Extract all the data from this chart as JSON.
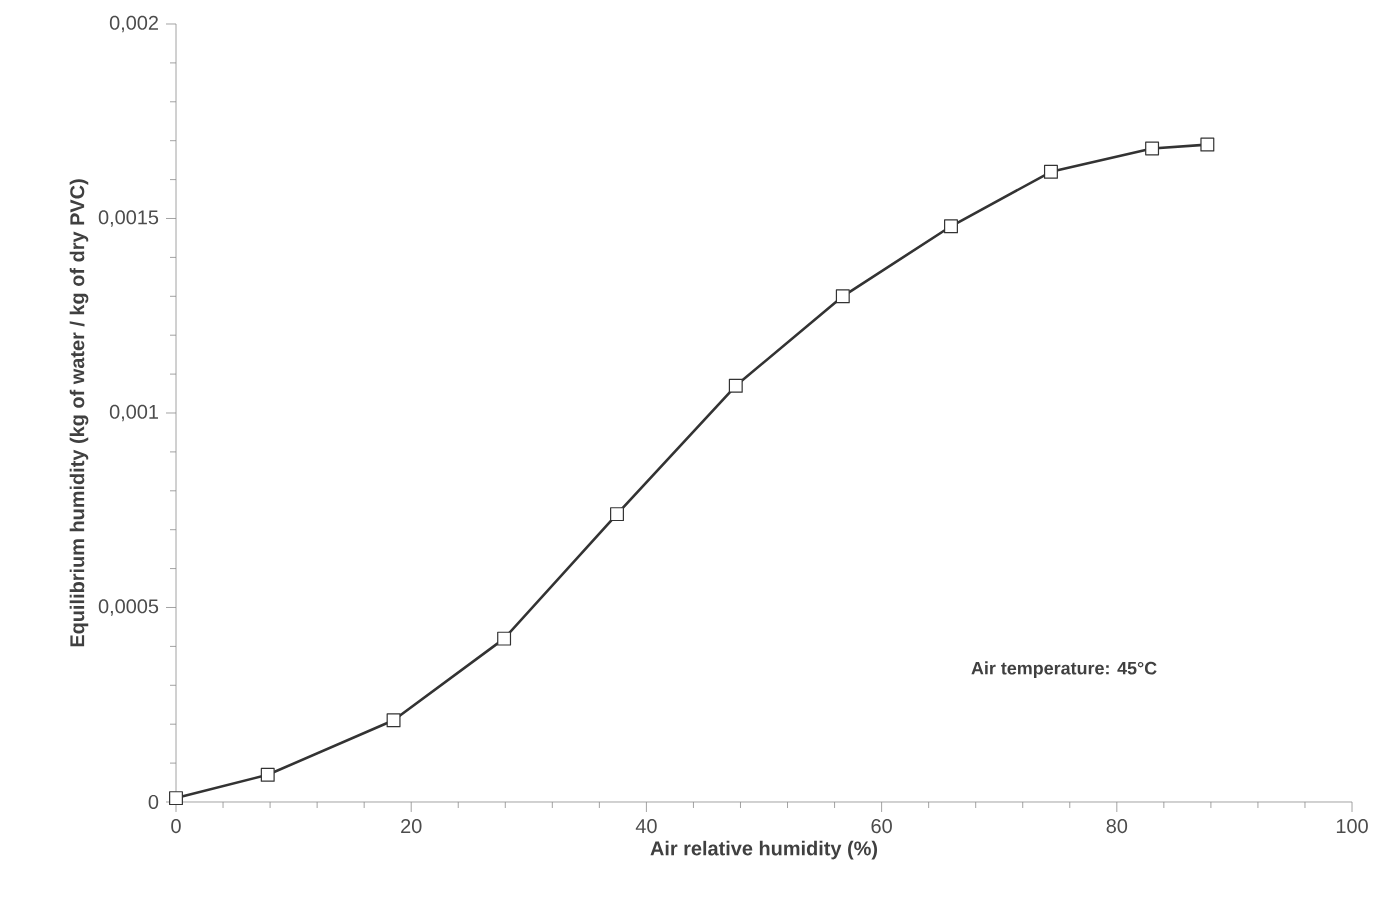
{
  "chart_data": {
    "type": "line",
    "xlabel": "Air relative humidity (%)",
    "ylabel": "Equilibrium humidity (kg of water / kg of dry PVC)",
    "x": [
      0,
      7.8,
      18.5,
      27.9,
      37.5,
      47.6,
      56.7,
      65.9,
      74.4,
      83.0,
      87.7
    ],
    "series": [
      {
        "color": "#333333",
        "values": [
          1e-05,
          7e-05,
          0.00021,
          0.00042,
          0.00074,
          0.00107,
          0.0013,
          0.00148,
          0.00162,
          0.00168,
          0.00169
        ]
      }
    ],
    "xlim": [
      0,
      100
    ],
    "xticks": [
      0,
      20,
      40,
      60,
      80,
      100
    ],
    "ylim": [
      0,
      0.002
    ],
    "yticks": [
      0,
      {
        "value": 0.0005,
        "label": "0,0005"
      },
      {
        "value": 0.001,
        "label": "0,001"
      },
      {
        "value": 0.0015,
        "label": "0,0015"
      },
      {
        "value": 0.002,
        "label": "0,002"
      }
    ],
    "marker": "square",
    "line_style": "solid",
    "grid": false,
    "annotations": [
      "Air temperature: 45°C"
    ]
  }
}
